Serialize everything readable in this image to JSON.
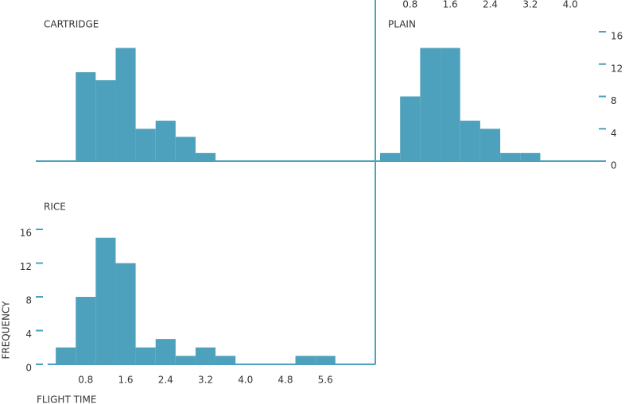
{
  "chart_data": [
    {
      "type": "histogram",
      "title": "CARTRIDGE",
      "color": "#4ea1bc",
      "bins": [
        0.2,
        0.6,
        1.0,
        1.4,
        1.8,
        2.2,
        2.6,
        3.0,
        3.4,
        3.8,
        4.2,
        4.6,
        5.0,
        5.4,
        5.8,
        6.2,
        6.6
      ],
      "values": [
        0,
        11,
        10,
        14,
        4,
        5,
        3,
        1,
        0,
        0,
        0,
        0,
        0,
        0,
        0,
        0
      ],
      "xlim": [
        -0.2,
        6.6
      ],
      "ylim": [
        0,
        16
      ]
    },
    {
      "type": "histogram",
      "title": "PLAIN",
      "color": "#4ea1bc",
      "bins": [
        0.2,
        0.6,
        1.0,
        1.4,
        1.8,
        2.2,
        2.6,
        3.0,
        3.4,
        3.8,
        4.2,
        4.6
      ],
      "values": [
        1,
        8,
        14,
        14,
        5,
        4,
        1,
        1,
        0,
        0,
        0
      ],
      "xlim": [
        0.2,
        4.6
      ],
      "ylim": [
        0,
        16
      ],
      "xticks": [
        0.8,
        1.6,
        2.4,
        3.2,
        {
          "value": 4,
          "label": "4.0"
        }
      ],
      "yticks": [
        0,
        4,
        8,
        12,
        16
      ]
    },
    {
      "type": "histogram",
      "title": "RICE",
      "color": "#4ea1bc",
      "xlabel": "FLIGHT TIME",
      "ylabel": "FREQUENCY",
      "bins": [
        0.2,
        0.6,
        1.0,
        1.4,
        1.8,
        2.2,
        2.6,
        3.0,
        3.4,
        3.8,
        4.2,
        4.6,
        5.0,
        5.4,
        5.8,
        6.2,
        6.6
      ],
      "values": [
        2,
        8,
        15,
        12,
        2,
        3,
        1,
        2,
        1,
        0,
        0,
        0,
        1,
        1,
        0,
        0
      ],
      "xlim": [
        -0.2,
        6.6
      ],
      "ylim": [
        0,
        16
      ],
      "xticks": [
        0.8,
        1.6,
        2.4,
        3.2,
        {
          "value": 4,
          "label": "4.0"
        },
        4.8,
        5.6
      ],
      "yticks": [
        0,
        4,
        8,
        12,
        16
      ]
    }
  ]
}
